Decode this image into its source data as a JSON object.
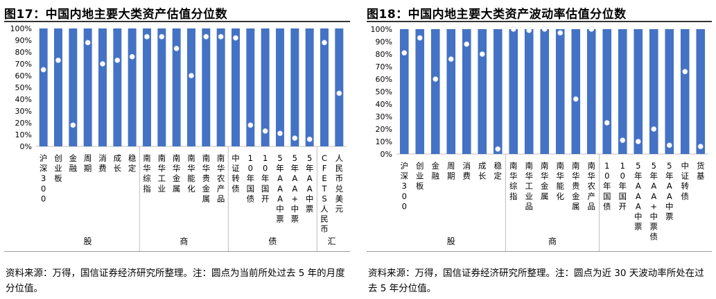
{
  "chart_data": [
    {
      "type": "bar",
      "title": "图17：中国内地主要大类资产估值分位数",
      "ylim": [
        0,
        100
      ],
      "ytick_labels": [
        "0%",
        "10%",
        "20%",
        "30%",
        "40%",
        "50%",
        "60%",
        "70%",
        "80%",
        "90%",
        "100%"
      ],
      "categories": [
        "沪深300",
        "创业板",
        "金融",
        "周期",
        "消费",
        "成长",
        "稳定",
        "南华综指",
        "南华工业",
        "南华金属",
        "南华能化",
        "南华贵金属",
        "南华农产品",
        "中证转债",
        "10年国债",
        "10年国开",
        "5年AAA中票",
        "5年AA+中票",
        "5年AA中票",
        "CFETS人民币",
        "人民币兑美元"
      ],
      "series": [
        {
          "values": [
            100,
            100,
            100,
            100,
            100,
            100,
            100,
            100,
            100,
            100,
            100,
            100,
            100,
            100,
            100,
            100,
            100,
            100,
            100,
            100,
            100
          ]
        },
        {
          "values": [
            65,
            73,
            18,
            88,
            70,
            73,
            76,
            93,
            93,
            83,
            60,
            93,
            93,
            92,
            18,
            13,
            11,
            7,
            6,
            88,
            45
          ]
        }
      ],
      "groups": [
        {
          "label": "股",
          "count": 7
        },
        {
          "label": "商",
          "count": 6
        },
        {
          "label": "债",
          "count": 6
        },
        {
          "label": "汇",
          "count": 2
        }
      ],
      "colors": {
        "bar": "#4472C4",
        "dot": "#ffffff"
      }
    },
    {
      "type": "bar",
      "title": "图18：中国内地主要大类资产波动率估值分位数",
      "ylim": [
        0,
        100
      ],
      "ytick_labels": [
        "0%",
        "10%",
        "20%",
        "30%",
        "40%",
        "50%",
        "60%",
        "70%",
        "80%",
        "90%",
        "100%"
      ],
      "categories": [
        "沪深300",
        "创业板",
        "金融",
        "周期",
        "消费",
        "成长",
        "稳定",
        "南华综指",
        "南华工业品",
        "南华金属",
        "南华能化",
        "南华贵金属",
        "南华农产品",
        "10年国债",
        "10年国开",
        "5年AAA中票",
        "5年AA+中票债",
        "5年AA中票",
        "中证转债",
        "货基"
      ],
      "series": [
        {
          "values": [
            100,
            100,
            100,
            100,
            100,
            100,
            100,
            100,
            100,
            100,
            100,
            100,
            100,
            100,
            100,
            100,
            100,
            100,
            100,
            100
          ]
        },
        {
          "values": [
            81,
            93,
            60,
            76,
            88,
            80,
            4,
            100,
            99,
            100,
            97,
            44,
            100,
            25,
            11,
            10,
            20,
            7,
            66,
            6
          ]
        }
      ],
      "groups": [
        {
          "label": "股",
          "count": 7
        },
        {
          "label": "商",
          "count": 6
        },
        {
          "label": "",
          "count": 7
        }
      ],
      "colors": {
        "bar": "#4472C4",
        "dot": "#ffffff"
      }
    }
  ],
  "notes": [
    "资料来源：万得，国信证券经济研究所整理。注：圆点为当前所处过去 5 年的月度分位值。",
    "资料来源：万得，国信证券经济研究所整理。注：圆点为近 30 天波动率所处在过去 5 年分位值。"
  ]
}
